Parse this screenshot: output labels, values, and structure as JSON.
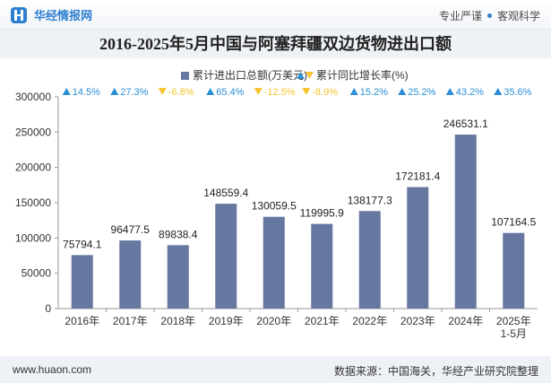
{
  "header": {
    "brand": "华经情报网",
    "slogan_left": "专业严谨",
    "slogan_right": "客观科学"
  },
  "footer": {
    "website": "www.huaon.com",
    "source": "数据来源：中国海关，华经产业研究院整理"
  },
  "colors": {
    "bar": "#6677a0",
    "up": "#2a8fd4",
    "down": "#f4c430",
    "header_bg": "#eef1f6",
    "brand": "#2f7fd0"
  },
  "chart_data": {
    "type": "bar",
    "title": "2016-2025年5月中国与阿塞拜疆双边货物进出口额",
    "categories": [
      "2016年",
      "2017年",
      "2018年",
      "2019年",
      "2020年",
      "2021年",
      "2022年",
      "2023年",
      "2024年",
      "2025年\n1-5月"
    ],
    "series": [
      {
        "name": "累计进出口总额(万美元)",
        "values": [
          75794.1,
          96477.5,
          89838.4,
          148559.4,
          130059.5,
          119995.9,
          138177.3,
          172181.4,
          246531.1,
          107164.5
        ],
        "labels": [
          "75794.1",
          "96477.5",
          "89838.4",
          "148559.4",
          "130059.5",
          "119995.9",
          "138177.3",
          "172181.4",
          "246531.1",
          "107164.5"
        ]
      },
      {
        "name": "累计同比增长率(%)",
        "values": [
          14.5,
          27.3,
          -6.8,
          65.4,
          -12.5,
          -8.9,
          15.2,
          25.2,
          43.2,
          35.6
        ],
        "labels": [
          "14.5%",
          "27.3%",
          "-6.8%",
          "65.4%",
          "-12.5%",
          "-8.9%",
          "15.2%",
          "25.2%",
          "43.2%",
          "35.6%"
        ]
      }
    ],
    "yticks": [
      "0",
      "50000",
      "100000",
      "150000",
      "200000",
      "250000",
      "300000"
    ],
    "ylim": [
      0,
      300000
    ],
    "legend_position": "top-center",
    "grid": false
  }
}
